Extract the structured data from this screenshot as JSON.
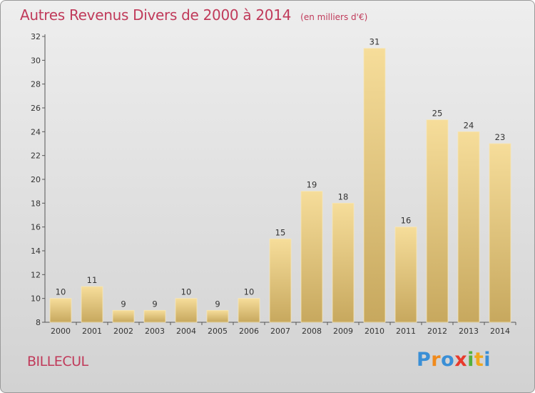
{
  "title": "Autres Revenus Divers de 2000 à 2014",
  "subtitle": "(en milliers d'€)",
  "commune": "BILLECUL",
  "logo": {
    "letters": [
      "P",
      "r",
      "o",
      "x",
      "i",
      "t",
      "i"
    ],
    "colors": [
      "#3a8fd6",
      "#f08a1c",
      "#3a8fd6",
      "#e83a2c",
      "#54b03c",
      "#f0a81c",
      "#3a8fd6"
    ]
  },
  "colors": {
    "title": "#c03a5a",
    "bar_light": "#f6dd9a",
    "bar_dark": "#c7a85e",
    "axis": "#555555"
  },
  "chart_data": {
    "type": "bar",
    "categories": [
      "2000",
      "2001",
      "2002",
      "2003",
      "2004",
      "2005",
      "2006",
      "2007",
      "2008",
      "2009",
      "2010",
      "2011",
      "2012",
      "2013",
      "2014"
    ],
    "values": [
      10,
      11,
      9,
      9,
      10,
      9,
      10,
      15,
      19,
      18,
      31,
      16,
      25,
      24,
      23
    ],
    "ylim": [
      8,
      32
    ],
    "yticks": [
      8,
      10,
      12,
      14,
      16,
      18,
      20,
      22,
      24,
      26,
      28,
      30,
      32
    ],
    "grid": false,
    "data_labels": true
  }
}
